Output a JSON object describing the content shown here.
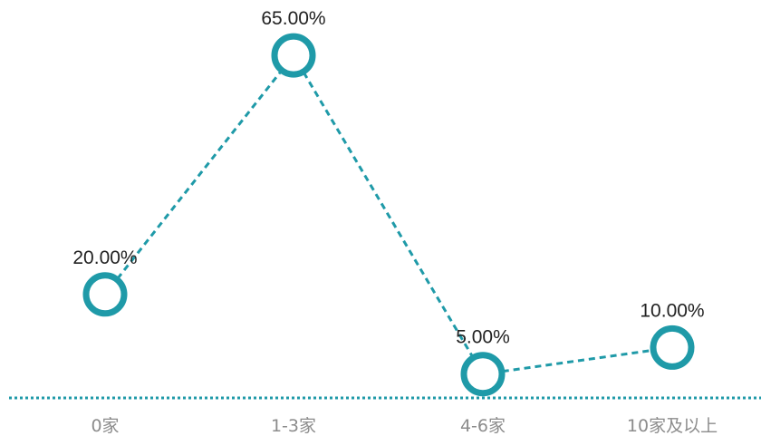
{
  "chart_data": {
    "type": "line",
    "title": "",
    "xlabel": "",
    "ylabel": "",
    "categories": [
      "0家",
      "1-3家",
      "4-6家",
      "10家及以上"
    ],
    "values": [
      20,
      65,
      5,
      10
    ],
    "data_labels": [
      "20.00%",
      "65.00%",
      "5.00%",
      "10.00%"
    ],
    "unit": "%",
    "ylim": [
      0,
      70
    ],
    "grid": false,
    "legend": "none",
    "line_style": "dashed",
    "marker": "ring",
    "colors": {
      "series": "#1f9aa8",
      "axis": "#1f9aa8",
      "category_text": "#8c8c8c",
      "label_text": "#222222"
    }
  }
}
